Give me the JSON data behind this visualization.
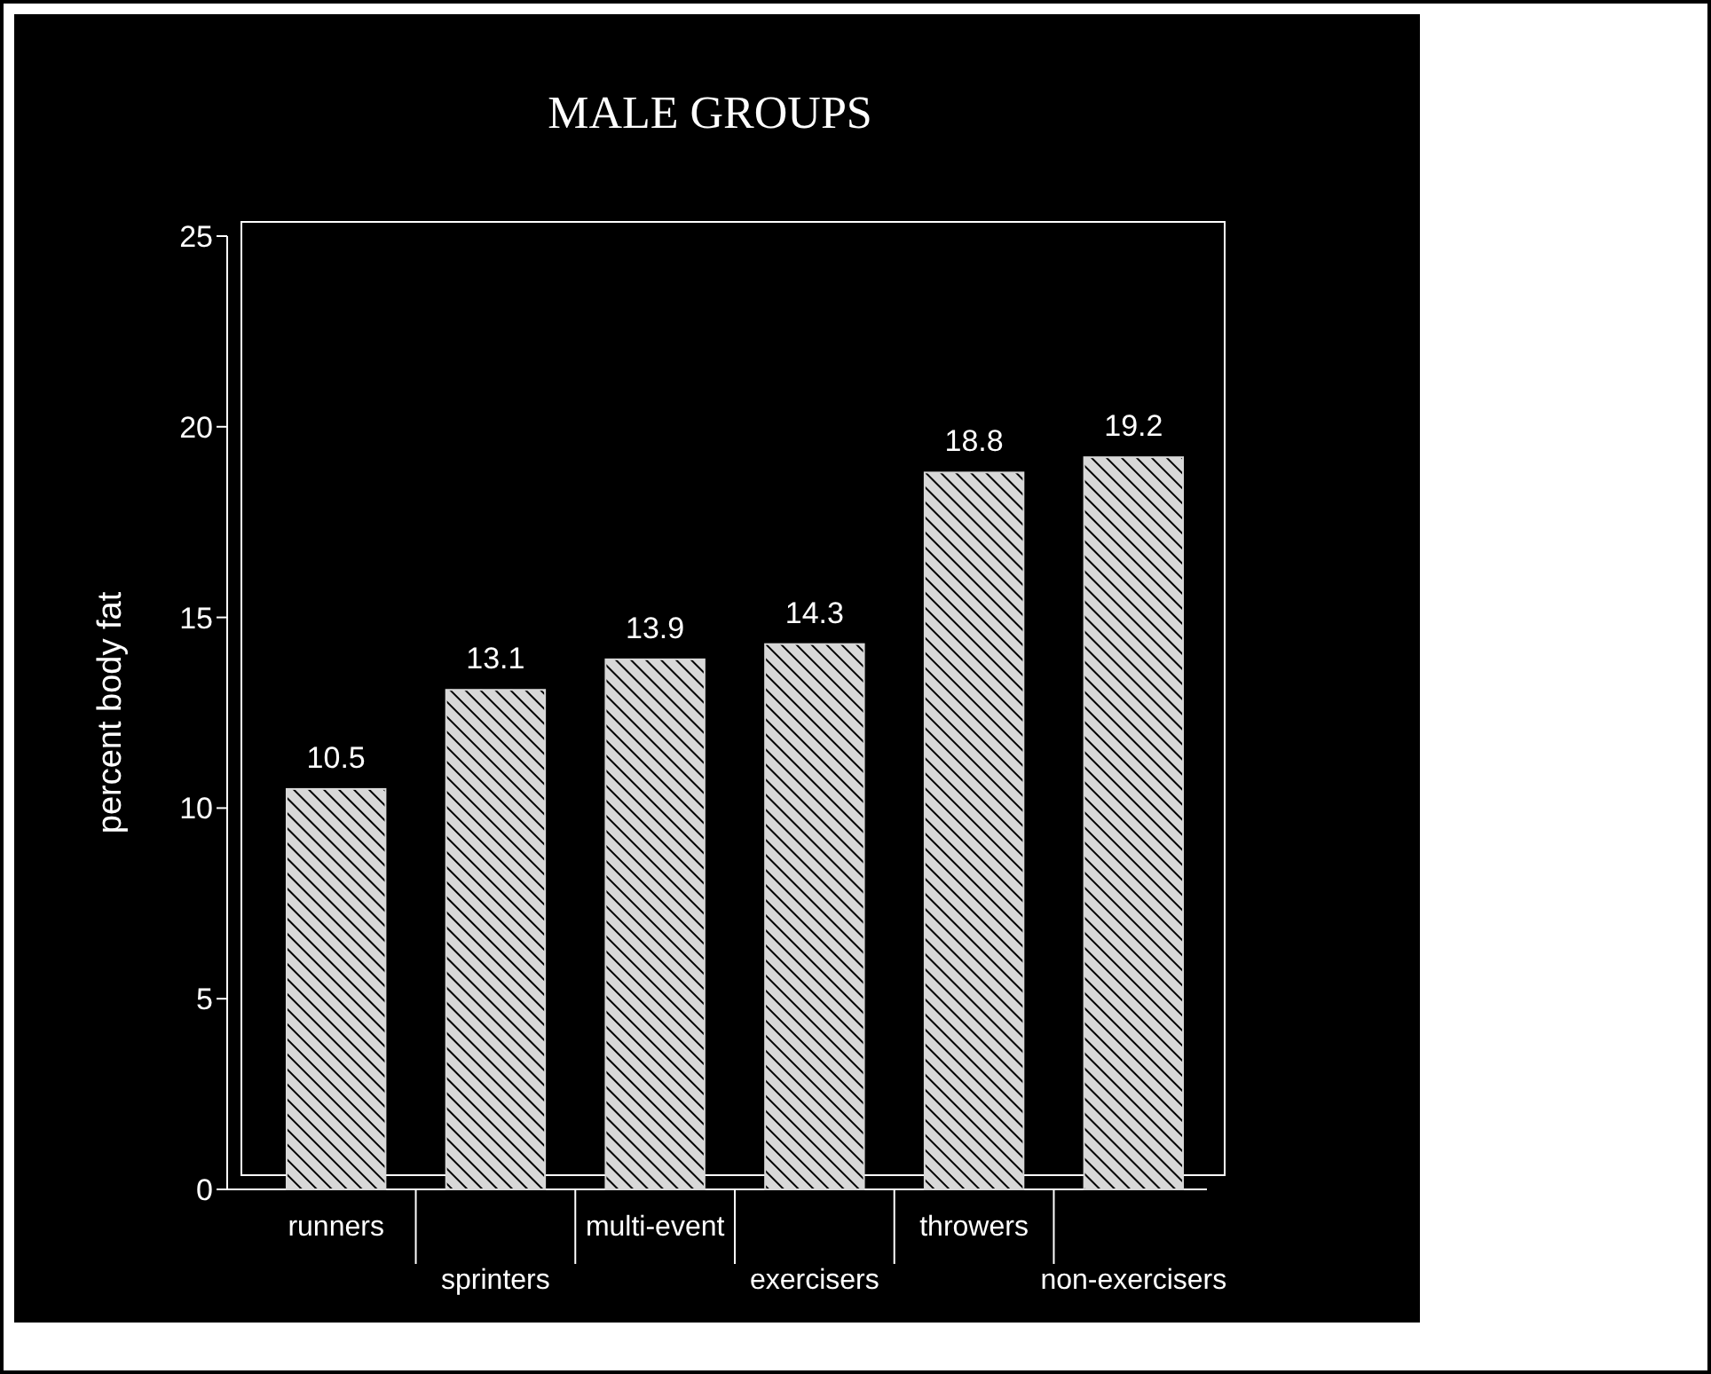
{
  "chart_data": {
    "type": "bar",
    "title": "MALE GROUPS",
    "ylabel": "percent body fat",
    "categories": [
      "runners",
      "sprinters",
      "multi-event",
      "exercisers",
      "throwers",
      "non-exercisers"
    ],
    "values": [
      10.5,
      13.1,
      13.9,
      14.3,
      18.8,
      19.2
    ],
    "color": "#d8d8d8",
    "ylim": [
      0,
      25
    ],
    "yticks": [
      0,
      5,
      10,
      15,
      20,
      25
    ],
    "grid": false,
    "data_labels": true
  }
}
